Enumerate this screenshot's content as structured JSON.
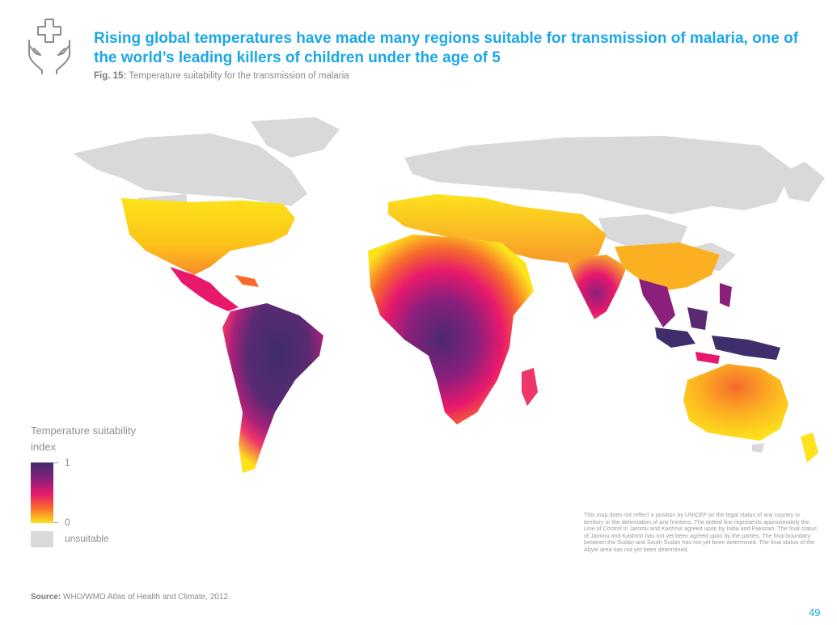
{
  "header": {
    "title": "Rising global temperatures have made many regions suitable for transmission of malaria, one of the world’s leading killers of children under the age of 5",
    "figure_label": "Fig. 15:",
    "figure_caption": "Temperature suitability for the transmission of malaria",
    "icon": "hands-medical-cross-icon"
  },
  "legend": {
    "title": "Temperature suitability index",
    "max_label": "1",
    "min_label": "0",
    "unsuitable_label": "unsuitable",
    "gradient_colors": [
      "#3f2d6c",
      "#8b1f7c",
      "#e8196d",
      "#f76a2c",
      "#fde21c"
    ],
    "unsuitable_color": "#d9d9d9"
  },
  "disclaimer": "This map does not reflect a position by UNICEF on the legal status of any country or territory or the delimitation of any frontiers. The dotted line represents approximately the Line of Control in Jammu and Kashmir agreed upon by India and Pakistan. The final status of Jammu and Kashmir has not yet been agreed upon by the parties. The final boundary between the Sudan and South Sudan has not yet been determined. The final status of the Abyei area has not yet been determined.",
  "source": {
    "label": "Source:",
    "text": "WHO/WMO Atlas of Health and Climate, 2012."
  },
  "page_number": "49"
}
